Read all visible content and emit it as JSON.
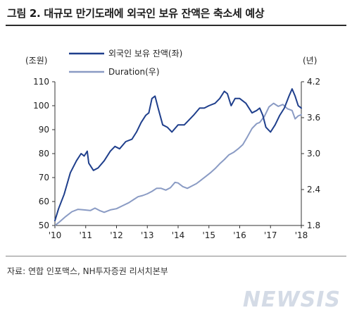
{
  "header": {
    "title": "그림 2. 대규모 만기도래에 외국인 보유 잔액은 축소세 예상"
  },
  "footer": {
    "source": "자료: 연합 인포맥스, NH투자증권 리서치본부"
  },
  "watermark": {
    "text": "NEWSIS"
  },
  "chart_data": {
    "type": "line",
    "title": "",
    "x_tick_labels": [
      "'10",
      "'11",
      "'12",
      "'13",
      "'14",
      "'15",
      "'16",
      "'17",
      "'18"
    ],
    "x_tick_values": [
      2010,
      2011,
      2012,
      2013,
      2014,
      2015,
      2016,
      2017,
      2018
    ],
    "xlim": [
      2010,
      2018
    ],
    "left_axis": {
      "unit_label": "(조원)",
      "ylim": [
        50,
        110
      ],
      "ticks": [
        50,
        60,
        70,
        80,
        90,
        100,
        110
      ]
    },
    "right_axis": {
      "unit_label": "(년)",
      "ylim": [
        1.8,
        4.2
      ],
      "ticks": [
        "1.8",
        "2.4",
        "3.0",
        "3.6",
        "4.2"
      ]
    },
    "legend_position": "top-left",
    "series": [
      {
        "name": "외국인 보유 잔액(좌)",
        "axis": "left",
        "color": "#1f3f8c",
        "points": [
          [
            2010.0,
            52
          ],
          [
            2010.12,
            57
          ],
          [
            2010.3,
            63
          ],
          [
            2010.5,
            72
          ],
          [
            2010.7,
            77
          ],
          [
            2010.85,
            80
          ],
          [
            2010.95,
            79
          ],
          [
            2011.05,
            81
          ],
          [
            2011.1,
            76
          ],
          [
            2011.25,
            73
          ],
          [
            2011.4,
            74
          ],
          [
            2011.6,
            77
          ],
          [
            2011.8,
            81
          ],
          [
            2011.95,
            83
          ],
          [
            2012.1,
            82
          ],
          [
            2012.3,
            85
          ],
          [
            2012.5,
            86
          ],
          [
            2012.65,
            89
          ],
          [
            2012.8,
            93
          ],
          [
            2012.95,
            96
          ],
          [
            2013.05,
            97
          ],
          [
            2013.15,
            103
          ],
          [
            2013.25,
            104
          ],
          [
            2013.35,
            99
          ],
          [
            2013.5,
            92
          ],
          [
            2013.65,
            91
          ],
          [
            2013.8,
            89
          ],
          [
            2014.0,
            92
          ],
          [
            2014.2,
            92
          ],
          [
            2014.35,
            94
          ],
          [
            2014.5,
            96
          ],
          [
            2014.7,
            99
          ],
          [
            2014.85,
            99
          ],
          [
            2015.0,
            100
          ],
          [
            2015.2,
            101
          ],
          [
            2015.35,
            103
          ],
          [
            2015.5,
            106
          ],
          [
            2015.6,
            105
          ],
          [
            2015.72,
            100
          ],
          [
            2015.85,
            103
          ],
          [
            2016.0,
            103
          ],
          [
            2016.2,
            101
          ],
          [
            2016.4,
            97
          ],
          [
            2016.55,
            98
          ],
          [
            2016.65,
            99
          ],
          [
            2016.75,
            96
          ],
          [
            2016.85,
            91
          ],
          [
            2017.0,
            89
          ],
          [
            2017.15,
            92
          ],
          [
            2017.3,
            96
          ],
          [
            2017.45,
            99
          ],
          [
            2017.6,
            104
          ],
          [
            2017.7,
            107
          ],
          [
            2017.8,
            104
          ],
          [
            2017.9,
            100
          ],
          [
            2018.0,
            99
          ]
        ]
      },
      {
        "name": "Duration(우)",
        "axis": "right",
        "color": "#8a9bc4",
        "points": [
          [
            2010.0,
            1.8
          ],
          [
            2010.15,
            1.86
          ],
          [
            2010.35,
            1.95
          ],
          [
            2010.55,
            2.03
          ],
          [
            2010.75,
            2.07
          ],
          [
            2010.95,
            2.06
          ],
          [
            2011.15,
            2.05
          ],
          [
            2011.3,
            2.09
          ],
          [
            2011.45,
            2.05
          ],
          [
            2011.6,
            2.02
          ],
          [
            2011.8,
            2.06
          ],
          [
            2012.0,
            2.08
          ],
          [
            2012.2,
            2.13
          ],
          [
            2012.4,
            2.18
          ],
          [
            2012.55,
            2.23
          ],
          [
            2012.7,
            2.28
          ],
          [
            2012.85,
            2.3
          ],
          [
            2013.0,
            2.33
          ],
          [
            2013.15,
            2.37
          ],
          [
            2013.3,
            2.42
          ],
          [
            2013.45,
            2.42
          ],
          [
            2013.6,
            2.39
          ],
          [
            2013.75,
            2.43
          ],
          [
            2013.9,
            2.52
          ],
          [
            2014.0,
            2.51
          ],
          [
            2014.15,
            2.45
          ],
          [
            2014.3,
            2.42
          ],
          [
            2014.45,
            2.46
          ],
          [
            2014.6,
            2.5
          ],
          [
            2014.75,
            2.56
          ],
          [
            2014.9,
            2.62
          ],
          [
            2015.05,
            2.68
          ],
          [
            2015.2,
            2.75
          ],
          [
            2015.35,
            2.83
          ],
          [
            2015.5,
            2.9
          ],
          [
            2015.65,
            2.98
          ],
          [
            2015.8,
            3.02
          ],
          [
            2015.95,
            3.08
          ],
          [
            2016.1,
            3.15
          ],
          [
            2016.25,
            3.28
          ],
          [
            2016.4,
            3.42
          ],
          [
            2016.55,
            3.5
          ],
          [
            2016.65,
            3.52
          ],
          [
            2016.8,
            3.62
          ],
          [
            2016.95,
            3.78
          ],
          [
            2017.1,
            3.84
          ],
          [
            2017.25,
            3.79
          ],
          [
            2017.4,
            3.82
          ],
          [
            2017.55,
            3.75
          ],
          [
            2017.7,
            3.72
          ],
          [
            2017.8,
            3.58
          ],
          [
            2017.9,
            3.63
          ],
          [
            2018.0,
            3.65
          ]
        ]
      }
    ]
  }
}
